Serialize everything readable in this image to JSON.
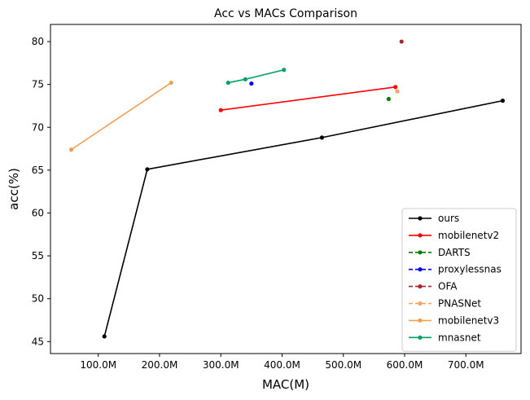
{
  "chart_data": {
    "type": "line",
    "title": "Acc vs MACs Comparison",
    "xlabel": "MAC(M)",
    "ylabel": "acc(%)",
    "xlim": [
      22,
      790
    ],
    "ylim": [
      43.6,
      82
    ],
    "x_ticks": [
      100,
      200,
      300,
      400,
      500,
      600,
      700
    ],
    "x_tick_labels": [
      "100.0M",
      "200.0M",
      "300.0M",
      "400.0M",
      "500.0M",
      "600.0M",
      "700.0M"
    ],
    "y_ticks": [
      45,
      50,
      55,
      60,
      65,
      70,
      75,
      80
    ],
    "y_tick_labels": [
      "45",
      "50",
      "55",
      "60",
      "65",
      "70",
      "75",
      "80"
    ],
    "grid": false,
    "legend_position": "bottom-right",
    "series": [
      {
        "name": "ours",
        "color": "#000000",
        "dashed": false,
        "x": [
          110,
          180,
          465,
          760
        ],
        "y": [
          45.6,
          65.1,
          68.8,
          73.1
        ]
      },
      {
        "name": "mobilenetv2",
        "color": "#ff0000",
        "dashed": false,
        "x": [
          300,
          585
        ],
        "y": [
          72.0,
          74.7
        ]
      },
      {
        "name": "DARTS",
        "color": "#008000",
        "dashed": true,
        "x": [
          574
        ],
        "y": [
          73.3
        ]
      },
      {
        "name": "proxylessnas",
        "color": "#0000ff",
        "dashed": true,
        "x": [
          350
        ],
        "y": [
          75.1
        ]
      },
      {
        "name": "OFA",
        "color": "#a52a2a",
        "dashed": true,
        "x": [
          595
        ],
        "y": [
          80.0
        ]
      },
      {
        "name": "PNASNet",
        "color": "#f4a460",
        "dashed": true,
        "x": [
          588
        ],
        "y": [
          74.2
        ]
      },
      {
        "name": "mobilenetv3",
        "color": "#f0a050",
        "dashed": false,
        "x": [
          56,
          219
        ],
        "y": [
          67.4,
          75.2
        ]
      },
      {
        "name": "mnasnet",
        "color": "#00a060",
        "dashed": false,
        "x": [
          312,
          340,
          403
        ],
        "y": [
          75.2,
          75.6,
          76.7
        ]
      }
    ]
  }
}
